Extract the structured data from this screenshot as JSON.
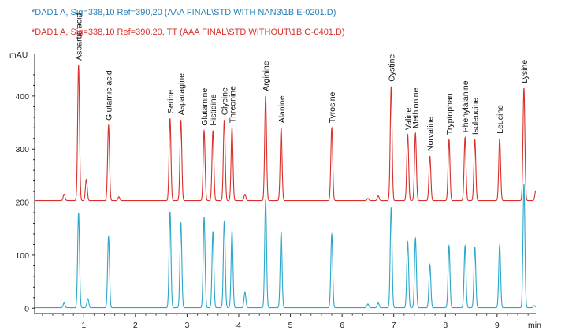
{
  "legend": [
    {
      "text": "*DAD1 A, Sig=338,10 Ref=390,20 (AAA FINAL\\STD WITH NAN3\\1B E-0201.D)",
      "color": "#2a7fb8"
    },
    {
      "text": "*DAD1 A, Sig=338,10 Ref=390,20, TT (AAA FINAL\\STD WITHOUT\\1B G-0401.D)",
      "color": "#d9302b"
    }
  ],
  "chart_data": {
    "type": "line",
    "ylabel": "mAU",
    "xlabel": "min",
    "xlim": [
      0.05,
      9.75
    ],
    "ylim": [
      -10,
      480
    ],
    "x_ticks": [
      1,
      2,
      3,
      4,
      5,
      6,
      7,
      8,
      9
    ],
    "y_ticks": [
      0,
      100,
      200,
      300,
      400
    ],
    "grid": false,
    "series": [
      {
        "name": "*DAD1 A, Sig=338,10 Ref=390,20, TT (AAA FINAL\\STD WITHOUT\\1B G-0401.D)",
        "color": "#d9302b",
        "baseline": 203,
        "peaks": [
          {
            "rt": 0.62,
            "height": 215
          },
          {
            "rt": 0.9,
            "height": 458
          },
          {
            "rt": 1.05,
            "height": 243
          },
          {
            "rt": 1.48,
            "height": 345
          },
          {
            "rt": 1.68,
            "height": 210
          },
          {
            "rt": 2.67,
            "height": 358
          },
          {
            "rt": 2.88,
            "height": 355
          },
          {
            "rt": 3.33,
            "height": 335
          },
          {
            "rt": 3.5,
            "height": 335
          },
          {
            "rt": 3.72,
            "height": 355
          },
          {
            "rt": 3.87,
            "height": 340
          },
          {
            "rt": 4.12,
            "height": 215
          },
          {
            "rt": 4.52,
            "height": 400
          },
          {
            "rt": 4.82,
            "height": 340
          },
          {
            "rt": 5.8,
            "height": 340
          },
          {
            "rt": 6.5,
            "height": 207
          },
          {
            "rt": 6.7,
            "height": 212
          },
          {
            "rt": 6.95,
            "height": 418
          },
          {
            "rt": 7.27,
            "height": 327
          },
          {
            "rt": 7.42,
            "height": 330
          },
          {
            "rt": 7.7,
            "height": 287
          },
          {
            "rt": 8.07,
            "height": 318
          },
          {
            "rt": 8.38,
            "height": 322
          },
          {
            "rt": 8.57,
            "height": 318
          },
          {
            "rt": 9.05,
            "height": 320
          },
          {
            "rt": 9.52,
            "height": 415
          },
          {
            "rt": 9.75,
            "height": 222
          }
        ]
      },
      {
        "name": "*DAD1 A, Sig=338,10 Ref=390,20 (AAA FINAL\\STD WITH NAN3\\1B E-0201.D)",
        "color": "#2aa8c9",
        "baseline": 1,
        "peaks": [
          {
            "rt": 0.62,
            "height": 10
          },
          {
            "rt": 0.9,
            "height": 180
          },
          {
            "rt": 1.08,
            "height": 18
          },
          {
            "rt": 1.48,
            "height": 135
          },
          {
            "rt": 2.67,
            "height": 182
          },
          {
            "rt": 2.88,
            "height": 162
          },
          {
            "rt": 3.33,
            "height": 172
          },
          {
            "rt": 3.5,
            "height": 145
          },
          {
            "rt": 3.72,
            "height": 165
          },
          {
            "rt": 3.87,
            "height": 145
          },
          {
            "rt": 4.12,
            "height": 30
          },
          {
            "rt": 4.52,
            "height": 205
          },
          {
            "rt": 4.82,
            "height": 145
          },
          {
            "rt": 5.8,
            "height": 140
          },
          {
            "rt": 6.5,
            "height": 8
          },
          {
            "rt": 6.7,
            "height": 10
          },
          {
            "rt": 6.95,
            "height": 190
          },
          {
            "rt": 7.27,
            "height": 125
          },
          {
            "rt": 7.42,
            "height": 132
          },
          {
            "rt": 7.7,
            "height": 82
          },
          {
            "rt": 8.07,
            "height": 118
          },
          {
            "rt": 8.38,
            "height": 118
          },
          {
            "rt": 8.57,
            "height": 115
          },
          {
            "rt": 9.05,
            "height": 120
          },
          {
            "rt": 9.52,
            "height": 235
          },
          {
            "rt": 9.72,
            "height": 5
          }
        ]
      }
    ],
    "annotations": [
      {
        "text": "Aspartic acid",
        "rt": 0.9
      },
      {
        "text": "Glutamic acid",
        "rt": 1.48
      },
      {
        "text": "Serine",
        "rt": 2.67
      },
      {
        "text": "Asparagine",
        "rt": 2.88
      },
      {
        "text": "Glutamine",
        "rt": 3.33
      },
      {
        "text": "Histidine",
        "rt": 3.5
      },
      {
        "text": "Glycine",
        "rt": 3.72
      },
      {
        "text": "Threonine",
        "rt": 3.87
      },
      {
        "text": "Arginine",
        "rt": 4.52
      },
      {
        "text": "Alanine",
        "rt": 4.82
      },
      {
        "text": "Tyrosine",
        "rt": 5.8
      },
      {
        "text": "Cystine",
        "rt": 6.95
      },
      {
        "text": "Valine",
        "rt": 7.27
      },
      {
        "text": "Methionine",
        "rt": 7.42
      },
      {
        "text": "Norvaline",
        "rt": 7.7
      },
      {
        "text": "Tryptophan",
        "rt": 8.07
      },
      {
        "text": "Phenylalanine",
        "rt": 8.38
      },
      {
        "text": "Isoleucine",
        "rt": 8.57
      },
      {
        "text": "Leucine",
        "rt": 9.05
      },
      {
        "text": "Lysine",
        "rt": 9.52
      }
    ]
  }
}
